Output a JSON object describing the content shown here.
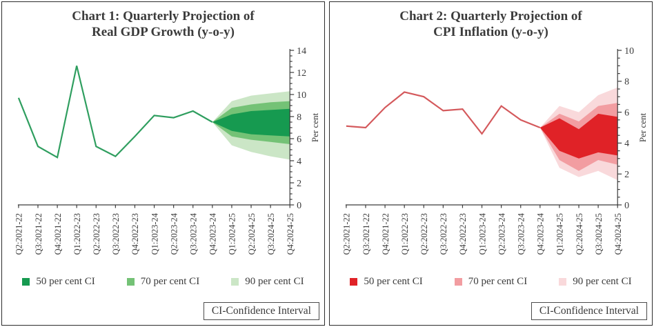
{
  "panels": [
    {
      "title_line1": "Chart 1: Quarterly Projection of",
      "title_line2": "Real GDP Growth (y-o-y)",
      "ci_note": "CI-Confidence Interval"
    },
    {
      "title_line1": "Chart 2: Quarterly Projection of",
      "title_line2": "CPI Inflation (y-o-y)",
      "ci_note": "CI-Confidence Interval"
    }
  ],
  "chart_data": [
    {
      "type": "line",
      "title": "Chart 1: Quarterly Projection of Real GDP Growth (y-o-y)",
      "xlabel": "",
      "ylabel": "Per cent",
      "ylim": [
        0,
        14
      ],
      "ytick_step": 2,
      "ytick_minor_step": 0.5,
      "grid": false,
      "legend_position": "bottom",
      "categories": [
        "Q2:2021-22",
        "Q3:2021-22",
        "Q4:2021-22",
        "Q1:2022-23",
        "Q2:2022-23",
        "Q3:2022-23",
        "Q4:2022-23",
        "Q1:2023-24",
        "Q2:2023-24",
        "Q3:2023-24",
        "Q4:2023-24",
        "Q1:2024-25",
        "Q2:2024-25",
        "Q3:2024-25",
        "Q4:2024-25"
      ],
      "actual": [
        9.7,
        5.3,
        4.3,
        12.6,
        5.3,
        4.4,
        6.2,
        8.1,
        7.9,
        8.5,
        7.5,
        null,
        null,
        null,
        null
      ],
      "line_color": "#2f9e5f",
      "fan_start_index": 10,
      "bands": {
        "ci50": {
          "lower": [
            7.5,
            6.7,
            6.4,
            6.3,
            6.2
          ],
          "upper": [
            7.5,
            8.2,
            8.5,
            8.6,
            8.7
          ]
        },
        "ci70": {
          "lower": [
            7.5,
            6.2,
            5.9,
            5.7,
            5.5
          ],
          "upper": [
            7.5,
            8.8,
            9.1,
            9.3,
            9.4
          ]
        },
        "ci90": {
          "lower": [
            7.5,
            5.4,
            4.8,
            4.4,
            4.1
          ],
          "upper": [
            7.5,
            9.4,
            9.9,
            10.1,
            10.3
          ]
        }
      },
      "legend": [
        {
          "label": "50 per cent CI",
          "color": "#169a50"
        },
        {
          "label": "70 per cent CI",
          "color": "#74c276"
        },
        {
          "label": "90 per cent CI",
          "color": "#cbe6c6"
        }
      ]
    },
    {
      "type": "line",
      "title": "Chart 2: Quarterly Projection of CPI Inflation (y-o-y)",
      "xlabel": "",
      "ylabel": "Per cent",
      "ylim": [
        0,
        10
      ],
      "ytick_step": 2,
      "ytick_minor_step": 0.5,
      "grid": false,
      "legend_position": "bottom",
      "categories": [
        "Q2:2021-22",
        "Q3:2021-22",
        "Q4:2021-22",
        "Q1:2022-23",
        "Q2:2022-23",
        "Q3:2022-23",
        "Q4:2022-23",
        "Q1:2023-24",
        "Q2:2023-24",
        "Q3:2023-24",
        "Q4:2023-24",
        "Q1:2024-25",
        "Q2:2024-25",
        "Q3:2024-25",
        "Q4:2024-25"
      ],
      "actual": [
        5.1,
        5.0,
        6.3,
        7.3,
        7.0,
        6.1,
        6.2,
        4.6,
        6.4,
        5.5,
        5.0,
        null,
        null,
        null,
        null
      ],
      "line_color": "#d4595c",
      "fan_start_index": 10,
      "bands": {
        "ci50": {
          "lower": [
            5.0,
            3.5,
            3.0,
            3.4,
            3.2
          ],
          "upper": [
            5.0,
            5.6,
            4.9,
            5.9,
            5.7
          ]
        },
        "ci70": {
          "lower": [
            5.0,
            2.9,
            2.2,
            2.9,
            2.6
          ],
          "upper": [
            5.0,
            5.9,
            5.4,
            6.4,
            6.6
          ]
        },
        "ci90": {
          "lower": [
            5.0,
            2.4,
            1.8,
            2.2,
            1.6
          ],
          "upper": [
            5.0,
            6.4,
            6.0,
            7.1,
            7.6
          ]
        }
      },
      "legend": [
        {
          "label": "50 per cent CI",
          "color": "#e02227"
        },
        {
          "label": "70 per cent CI",
          "color": "#f29da1"
        },
        {
          "label": "90 per cent CI",
          "color": "#f9d9db"
        }
      ]
    }
  ]
}
